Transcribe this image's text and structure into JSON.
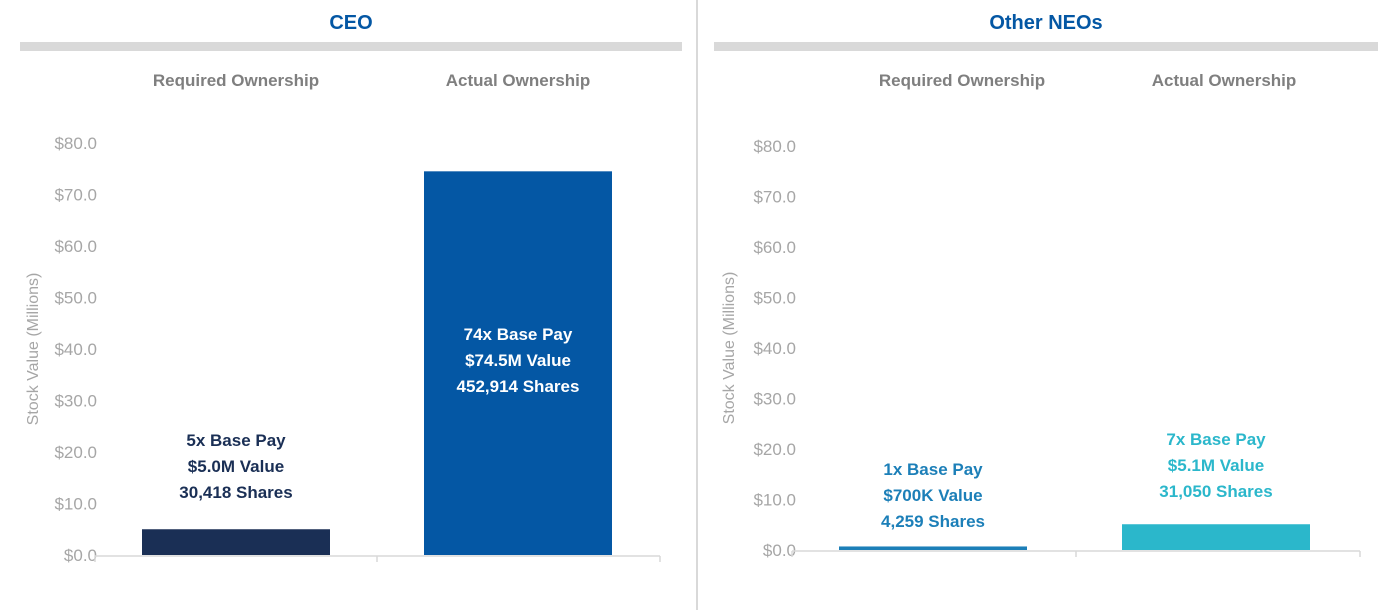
{
  "chart_data": [
    {
      "type": "bar",
      "title": "CEO",
      "ylabel": "Stock Value (Millions)",
      "ylim": [
        0,
        80
      ],
      "yticks": [
        "$0.0",
        "$10.0",
        "$20.0",
        "$30.0",
        "$40.0",
        "$50.0",
        "$60.0",
        "$70.0",
        "$80.0"
      ],
      "categories": [
        "Required Ownership",
        "Actual Ownership"
      ],
      "values": [
        5.0,
        74.5
      ],
      "colors": [
        "#1a2f55",
        "#0457a4"
      ],
      "data_labels": [
        [
          "5x Base Pay",
          "$5.0M Value",
          "30,418 Shares"
        ],
        [
          "74x Base Pay",
          "$74.5M Value",
          "452,914 Shares"
        ]
      ],
      "label_colors": [
        "#1a2f55",
        "#ffffff"
      ],
      "title_color": "#0457a4"
    },
    {
      "type": "bar",
      "title": "Other NEOs",
      "ylabel": "Stock Value (Millions)",
      "ylim": [
        0,
        80
      ],
      "yticks": [
        "$0.0",
        "$10.0",
        "$20.0",
        "$30.0",
        "$40.0",
        "$50.0",
        "$60.0",
        "$70.0",
        "$80.0"
      ],
      "categories": [
        "Required Ownership",
        "Actual Ownership"
      ],
      "values": [
        0.7,
        5.1
      ],
      "colors": [
        "#1c7fb8",
        "#2bb7cb"
      ],
      "data_labels": [
        [
          "1x Base Pay",
          "$700K Value",
          "4,259 Shares"
        ],
        [
          "7x Base Pay",
          "$5.1M Value",
          "31,050 Shares"
        ]
      ],
      "label_colors": [
        "#1c7fb8",
        "#2bb7cb"
      ],
      "title_color": "#0457a4"
    }
  ]
}
